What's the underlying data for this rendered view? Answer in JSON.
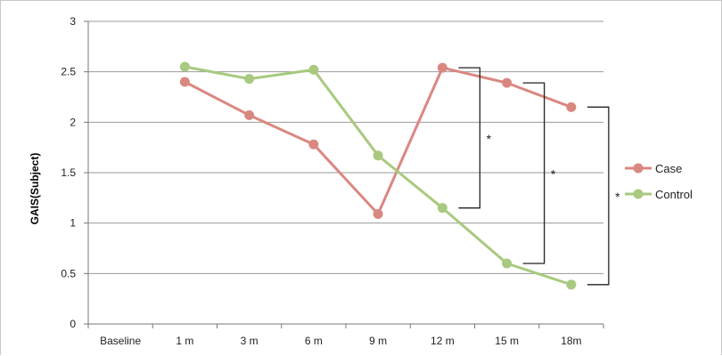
{
  "chart_data": {
    "type": "line",
    "title": "",
    "xlabel": "",
    "ylabel": "GAIS(Subject)",
    "categories": [
      "Baseline",
      "1 m",
      "3 m",
      "6 m",
      "9 m",
      "12 m",
      "15 m",
      "18m"
    ],
    "ylim": [
      0,
      3
    ],
    "yticks": [
      "0",
      "0.5",
      "1",
      "1.5",
      "2",
      "2.5",
      "3"
    ],
    "grid": true,
    "legend_position": "right",
    "series": [
      {
        "name": "Case",
        "color": "#d98880",
        "values": [
          null,
          2.4,
          2.07,
          1.78,
          1.09,
          2.54,
          2.39,
          2.15
        ]
      },
      {
        "name": "Control",
        "color": "#a8c97f",
        "values": [
          null,
          2.55,
          2.43,
          2.52,
          1.67,
          1.15,
          0.6,
          0.39
        ]
      }
    ],
    "annotations": [
      {
        "text": "*",
        "category": "12 m",
        "y_top": 2.54,
        "y_bottom": 1.15
      },
      {
        "text": "*",
        "category": "15 m",
        "y_top": 2.39,
        "y_bottom": 0.6
      },
      {
        "text": "*",
        "category": "18m",
        "y_top": 2.15,
        "y_bottom": 0.39
      }
    ]
  }
}
